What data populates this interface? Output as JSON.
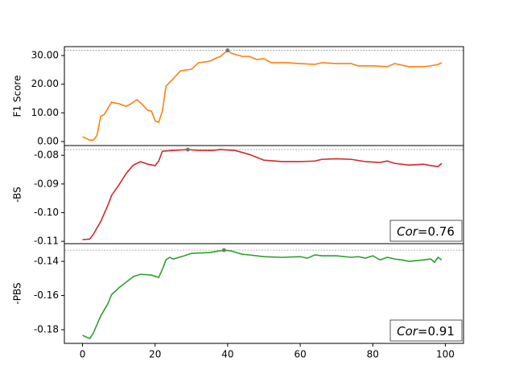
{
  "chart_data": [
    {
      "type": "line",
      "ylabel": "F1 Score",
      "color": "#ff7f0e",
      "x": [
        0,
        2,
        3,
        4,
        5,
        6,
        8,
        10,
        12,
        13,
        15,
        16,
        18,
        19,
        20,
        21,
        22,
        23,
        25,
        27,
        30,
        32,
        35,
        37,
        38,
        39,
        40,
        41,
        44,
        46,
        48,
        50,
        52,
        56,
        60,
        64,
        66,
        70,
        74,
        76,
        80,
        84,
        86,
        90,
        94,
        96,
        98,
        99
      ],
      "values": [
        1.7,
        0.5,
        0.5,
        2.2,
        8.7,
        9.5,
        13.7,
        13.2,
        12.3,
        12.9,
        14.6,
        13.5,
        10.9,
        10.6,
        7.3,
        6.7,
        10.6,
        19.3,
        21.9,
        24.7,
        25.2,
        27.5,
        28.0,
        29.2,
        29.7,
        30.8,
        31.8,
        30.8,
        29.7,
        29.7,
        28.6,
        28.9,
        27.5,
        27.5,
        27.2,
        26.9,
        27.5,
        27.2,
        27.2,
        26.4,
        26.4,
        26.1,
        27.2,
        26.1,
        26.1,
        26.4,
        26.9,
        27.5
      ],
      "best": {
        "x": 40,
        "y": 31.8
      },
      "xlim": [
        -5,
        105
      ],
      "ylim": [
        -1.4,
        33.1
      ],
      "yticks": [
        {
          "value": 0,
          "label": "0.00"
        },
        {
          "value": 10,
          "label": "10.00"
        },
        {
          "value": 20,
          "label": "20.00"
        },
        {
          "value": 30,
          "label": "30.00"
        }
      ]
    },
    {
      "type": "line",
      "ylabel": "-BS",
      "color": "#d62728",
      "x": [
        0,
        2,
        3,
        5,
        7,
        8,
        10,
        12,
        14,
        16,
        18,
        20,
        21,
        22,
        25,
        29,
        32,
        36,
        38,
        42,
        46,
        50,
        55,
        60,
        64,
        66,
        70,
        74,
        78,
        82,
        84,
        86,
        90,
        94,
        96,
        98,
        99
      ],
      "values": [
        -0.1094,
        -0.1092,
        -0.1075,
        -0.1031,
        -0.0974,
        -0.094,
        -0.0904,
        -0.0864,
        -0.0834,
        -0.0822,
        -0.0831,
        -0.0836,
        -0.082,
        -0.0786,
        -0.0783,
        -0.078,
        -0.0783,
        -0.0783,
        -0.078,
        -0.0783,
        -0.0797,
        -0.0817,
        -0.0822,
        -0.0822,
        -0.082,
        -0.0814,
        -0.0812,
        -0.0814,
        -0.0822,
        -0.0825,
        -0.082,
        -0.0828,
        -0.0834,
        -0.0831,
        -0.0836,
        -0.0839,
        -0.0828
      ],
      "best": {
        "x": 29,
        "y": -0.078
      },
      "annotation": {
        "symbol": "Cor",
        "text": "=0.76"
      },
      "xlim": [
        -5,
        105
      ],
      "ylim": [
        -0.1108,
        -0.0766
      ],
      "yticks": [
        {
          "value": -0.11,
          "label": "-0.11"
        },
        {
          "value": -0.1,
          "label": "-0.10"
        },
        {
          "value": -0.09,
          "label": "-0.09"
        },
        {
          "value": -0.08,
          "label": "-0.08"
        }
      ]
    },
    {
      "type": "line",
      "ylabel": "-PBS",
      "color": "#2ca02c",
      "x": [
        0,
        2,
        3,
        5,
        7,
        8,
        10,
        12,
        14,
        16,
        19,
        21,
        22,
        23,
        24,
        25,
        28,
        30,
        35,
        39,
        41,
        44,
        46,
        50,
        55,
        60,
        62,
        64,
        66,
        70,
        74,
        76,
        78,
        80,
        82,
        84,
        86,
        88,
        90,
        92,
        94,
        96,
        97,
        98,
        99
      ],
      "values": [
        -0.1833,
        -0.1852,
        -0.1819,
        -0.172,
        -0.1647,
        -0.1595,
        -0.1555,
        -0.1522,
        -0.1489,
        -0.1475,
        -0.148,
        -0.1494,
        -0.1447,
        -0.1391,
        -0.1376,
        -0.1386,
        -0.1367,
        -0.1353,
        -0.1348,
        -0.1334,
        -0.1339,
        -0.1358,
        -0.1362,
        -0.1372,
        -0.1376,
        -0.1372,
        -0.1381,
        -0.1362,
        -0.1367,
        -0.1367,
        -0.1376,
        -0.1372,
        -0.1381,
        -0.1367,
        -0.1391,
        -0.1376,
        -0.1386,
        -0.1391,
        -0.14,
        -0.1395,
        -0.1391,
        -0.1386,
        -0.1405,
        -0.1376,
        -0.1391
      ],
      "best": {
        "x": 39,
        "y": -0.1334
      },
      "annotation": {
        "symbol": "Cor",
        "text": "=0.91"
      },
      "xlim": [
        -5,
        105
      ],
      "ylim": [
        -0.188,
        -0.1296
      ],
      "xticks": [
        0,
        20,
        40,
        60,
        80,
        100
      ],
      "yticks": [
        {
          "value": -0.18,
          "label": "-0.18"
        },
        {
          "value": -0.16,
          "label": "-0.16"
        },
        {
          "value": -0.14,
          "label": "-0.14"
        }
      ]
    }
  ]
}
